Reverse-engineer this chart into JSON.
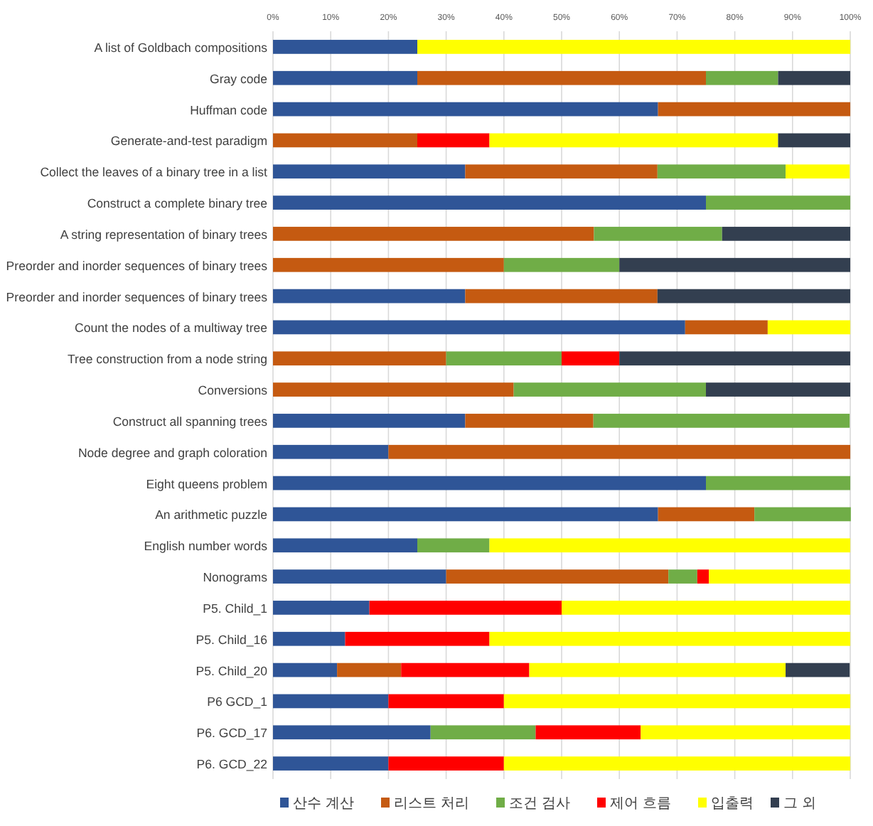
{
  "chart_data": {
    "type": "bar",
    "orientation": "horizontal",
    "stacked": true,
    "grid": "x",
    "legend": "bottom",
    "xlim": [
      0,
      100
    ],
    "xticks": [
      {
        "value": 0,
        "label": "0%"
      },
      {
        "value": 10,
        "label": "10%"
      },
      {
        "value": 20,
        "label": "20%"
      },
      {
        "value": 30,
        "label": "30%"
      },
      {
        "value": 40,
        "label": "40%"
      },
      {
        "value": 50,
        "label": "50%"
      },
      {
        "value": 60,
        "label": "60%"
      },
      {
        "value": 70,
        "label": "70%"
      },
      {
        "value": 80,
        "label": "80%"
      },
      {
        "value": 90,
        "label": "90%"
      },
      {
        "value": 100,
        "label": "100%"
      }
    ],
    "categories": [
      "A list of Goldbach compositions",
      "Gray code",
      "Huffman code",
      "Generate-and-test paradigm",
      "Collect the leaves of a binary tree in a list",
      "Construct a complete binary tree",
      "A string representation of binary trees",
      "Preorder and inorder sequences of binary trees",
      "Preorder and inorder sequences of binary trees",
      "Count the nodes of a multiway tree",
      "Tree construction from a node string",
      "Conversions",
      "Construct all spanning trees",
      "Node degree and graph coloration",
      "Eight queens problem",
      "An arithmetic puzzle",
      "English number words",
      "Nonograms",
      "P5. Child_1",
      "P5. Child_16",
      "P5. Child_20",
      "P6 GCD_1",
      "P6. GCD_17",
      "P6. GCD_22"
    ],
    "series": [
      {
        "name": "산수 계산",
        "color": "#2f5597",
        "values": [
          25,
          25,
          66.7,
          0,
          33.3,
          75,
          0,
          0,
          33.3,
          71.4,
          0,
          0,
          33.3,
          20,
          75,
          66.7,
          25,
          30,
          16.7,
          12.5,
          11.1,
          20,
          27.3,
          20
        ]
      },
      {
        "name": "리스트 처리",
        "color": "#c55a11",
        "values": [
          0,
          50,
          33.3,
          25,
          33.3,
          0,
          55.6,
          40,
          33.3,
          14.3,
          30,
          41.7,
          22.2,
          80,
          0,
          16.7,
          0,
          38.5,
          0,
          0,
          11.1,
          0,
          0,
          0
        ]
      },
      {
        "name": "조건 검사",
        "color": "#70ad47",
        "values": [
          0,
          12.5,
          0,
          0,
          22.2,
          25,
          22.2,
          20,
          0,
          0,
          20,
          33.3,
          44.4,
          0,
          25,
          16.7,
          12.5,
          5,
          0,
          0,
          0,
          0,
          18.2,
          0
        ]
      },
      {
        "name": "제어 흐름",
        "color": "#ff0000",
        "values": [
          0,
          0,
          0,
          12.5,
          0,
          0,
          0,
          0,
          0,
          0,
          10,
          0,
          0,
          0,
          0,
          0,
          0,
          2,
          33.3,
          25,
          22.2,
          20,
          18.2,
          20
        ]
      },
      {
        "name": "입출력",
        "color": "#ffff00",
        "values": [
          75,
          0,
          0,
          50,
          11.1,
          0,
          0,
          0,
          0,
          14.3,
          0,
          0,
          0,
          0,
          0,
          0,
          62.5,
          24.5,
          50,
          62.5,
          44.4,
          60,
          36.3,
          60
        ]
      },
      {
        "name": "그 외",
        "color": "#333f50",
        "values": [
          0,
          12.5,
          0,
          12.5,
          0,
          0,
          22.2,
          40,
          33.4,
          0,
          40,
          25,
          0,
          0,
          0,
          0,
          0,
          0,
          0,
          0,
          11.1,
          0,
          0,
          0
        ]
      }
    ]
  }
}
